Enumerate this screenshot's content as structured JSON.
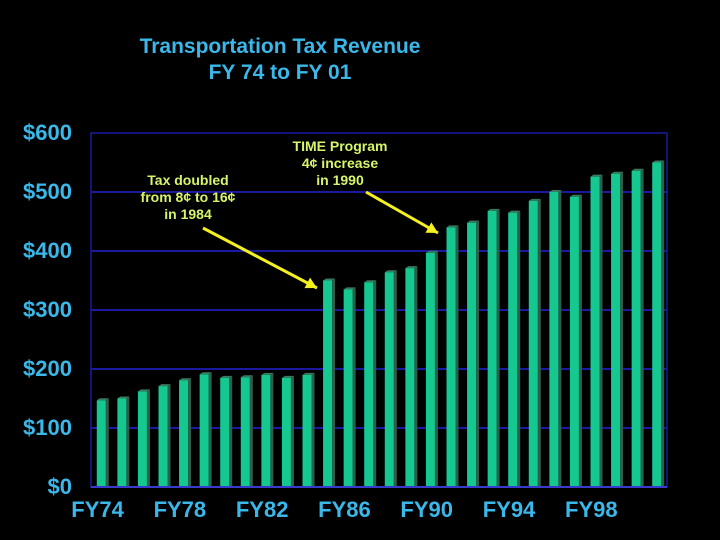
{
  "chart_data": {
    "type": "bar",
    "title": "Transportation Tax Revenue",
    "subtitle": "FY 74 to FY 01",
    "xlabel": "",
    "ylabel": "",
    "ylim": [
      0,
      600
    ],
    "grid": true,
    "legend": "none",
    "y_ticks": [
      "$0",
      "$100",
      "$200",
      "$300",
      "$400",
      "$500",
      "$600"
    ],
    "x_tick_labels": [
      "FY74",
      "FY78",
      "FY82",
      "FY86",
      "FY90",
      "FY94",
      "FY98"
    ],
    "categories": [
      "FY74",
      "FY75",
      "FY76",
      "FY77",
      "FY78",
      "FY79",
      "FY80",
      "FY81",
      "FY82",
      "FY83",
      "FY84",
      "FY85",
      "FY86",
      "FY87",
      "FY88",
      "FY89",
      "FY90",
      "FY91",
      "FY92",
      "FY93",
      "FY94",
      "FY95",
      "FY96",
      "FY97",
      "FY98",
      "FY99",
      "FY00",
      "FY01"
    ],
    "values": [
      147,
      150,
      162,
      171,
      181,
      191,
      185,
      186,
      190,
      185,
      190,
      350,
      335,
      347,
      364,
      371,
      397,
      440,
      448,
      468,
      465,
      485,
      500,
      492,
      526,
      531,
      536,
      550
    ],
    "bar_color": "#14c88f",
    "grid_color": "#1a1aa0",
    "annotations": [
      {
        "lines": [
          "Tax doubled",
          "from 8¢ to 16¢",
          "in 1984"
        ],
        "points_to": "FY85"
      },
      {
        "lines": [
          "TIME Program",
          "4¢ increase",
          "in 1990"
        ],
        "points_to": "FY91"
      }
    ]
  }
}
